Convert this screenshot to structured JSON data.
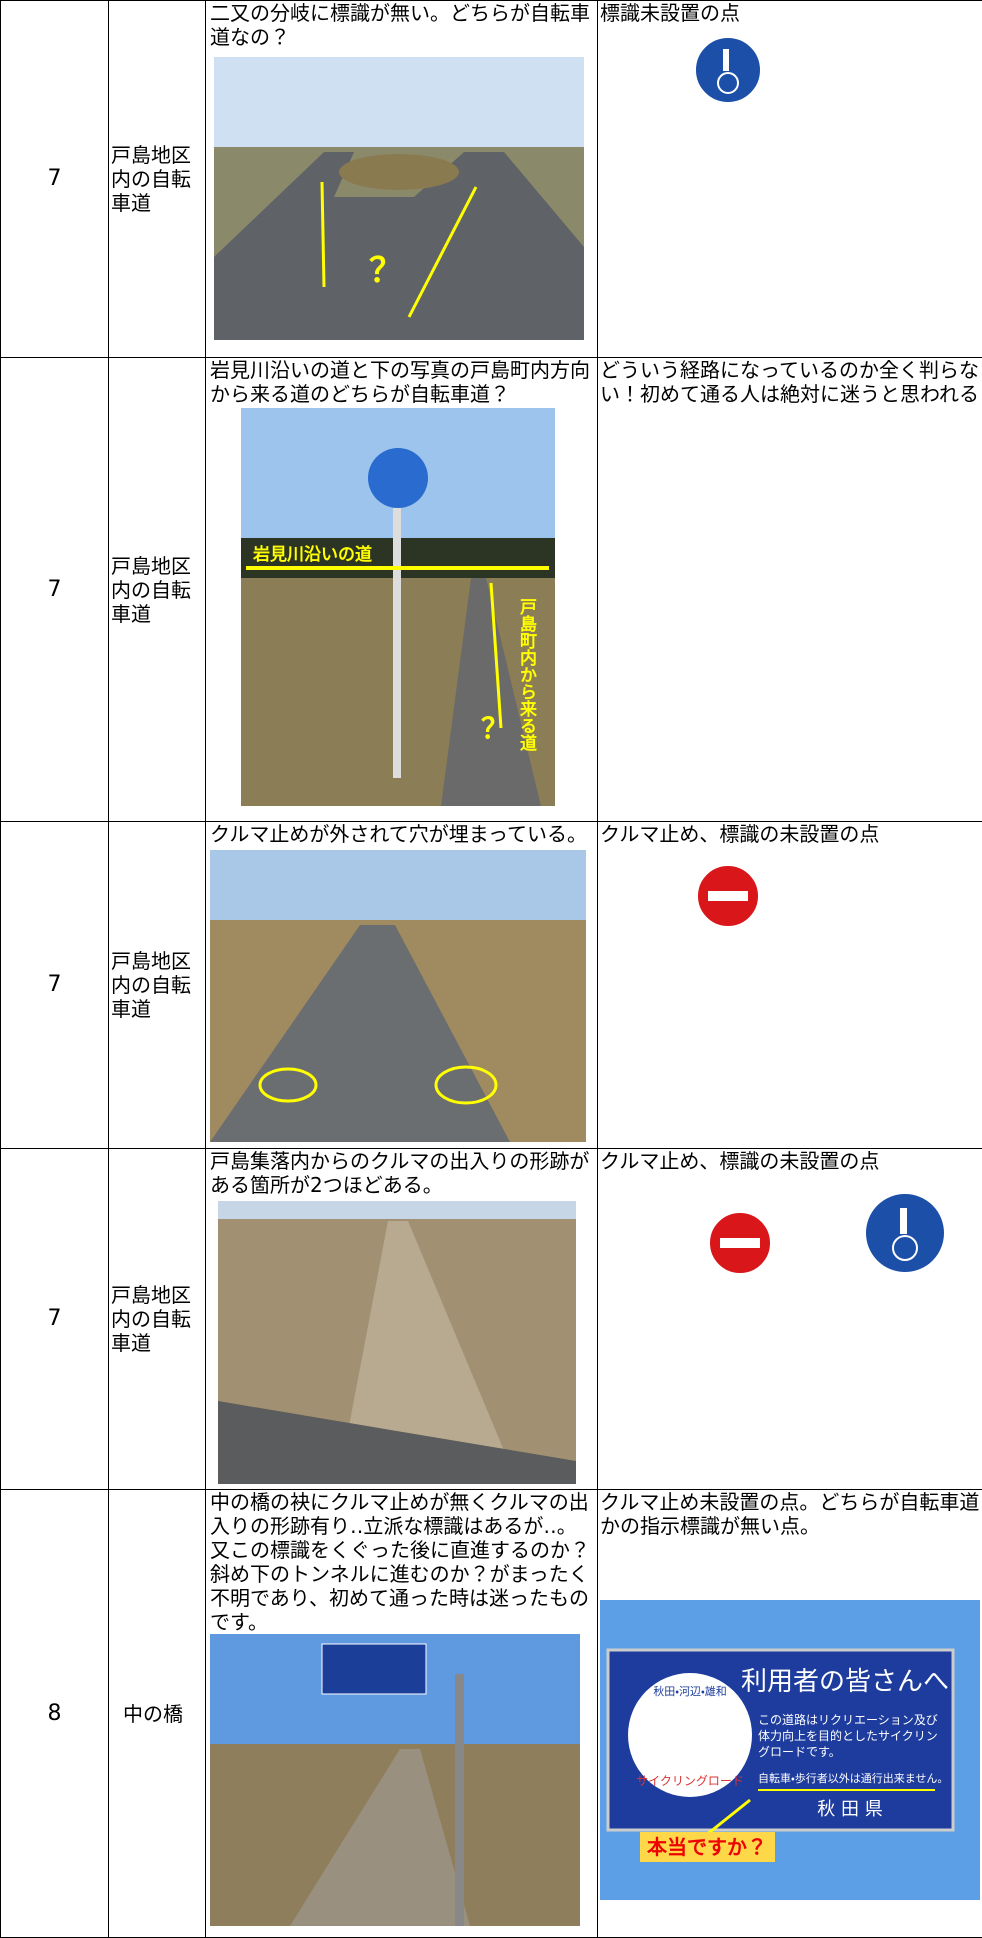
{
  "rows": [
    {
      "no": "7",
      "place": "戸島地区内の自転車道",
      "description": "二又の分岐に標識が無い。どちらが自転車道なの？",
      "note": "標識未設置の点",
      "photo_labels": [
        "？"
      ]
    },
    {
      "no": "7",
      "place": "戸島地区内の自転車道",
      "description": "岩見川沿いの道と下の写真の戸島町内方向から来る道のどちらが自転車道？",
      "note": "どういう経路になっているのか全く判らない！初めて通る人は絶対に迷うと思われる",
      "photo_labels": [
        "岩見川沿いの道",
        "戸島町内から来る道",
        "？"
      ]
    },
    {
      "no": "7",
      "place": "戸島地区内の自転車道",
      "description": "クルマ止めが外されて穴が埋まっている。",
      "note": "クルマ止め、標識の未設置の点"
    },
    {
      "no": "7",
      "place": "戸島地区内の自転車道",
      "description": "戸島集落内からのクルマの出入りの形跡がある箇所が2つほどある。",
      "note": "クルマ止め、標識の未設置の点"
    },
    {
      "no": "8",
      "place": "中の橋",
      "description": "中の橋の袂にクルマ止めが無くクルマの出入りの形跡有り‥立派な標識はあるが‥。又この標識をくぐった後に直進するのか？斜め下のトンネルに進むのか？がまったく不明であり、初めて通った時は迷ったものです。",
      "note": "クルマ止め未設置の点。どちらが自転車道かの指示標識が無い点。",
      "sign_texts": [
        "利用者の皆さんへ",
        "この道路はリクリエーション及び体力向上を目的としたサイクリングロードです。",
        "自転車・歩行者以外は通行出来ません。",
        "秋 田 県",
        "本当ですか？",
        "秋田・河辺・雄和",
        "サイクリングロード"
      ]
    }
  ]
}
